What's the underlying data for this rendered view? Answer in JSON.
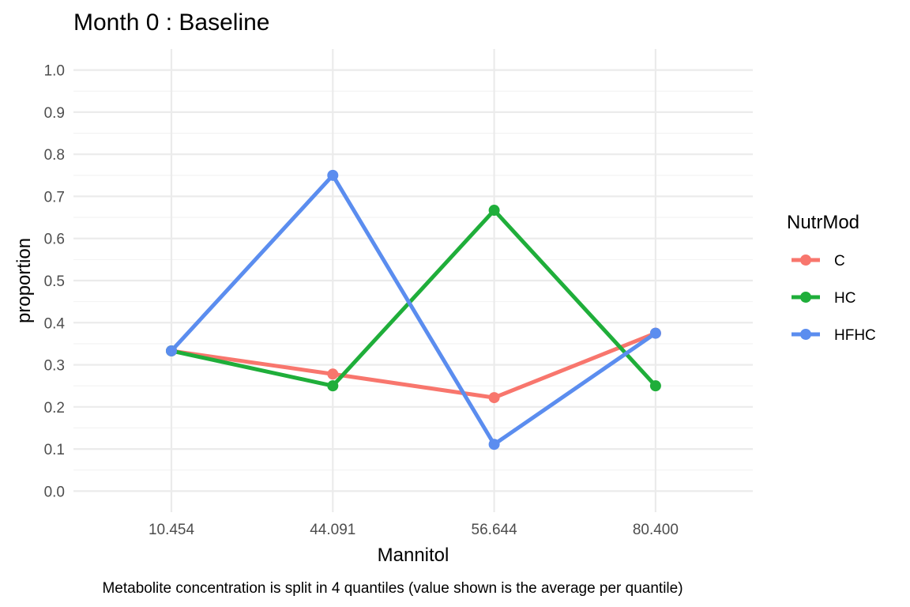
{
  "chart_data": {
    "type": "line",
    "title": "Month 0 : Baseline",
    "xlabel": "Mannitol",
    "ylabel": "proportion",
    "caption": "Metabolite concentration is split in 4 quantiles (value shown is the average per quantile)",
    "categories": [
      "10.454",
      "44.091",
      "56.644",
      "80.400"
    ],
    "ylim": [
      -0.05,
      1.05
    ],
    "yticks": [
      "0.0",
      "0.1",
      "0.2",
      "0.3",
      "0.4",
      "0.5",
      "0.6",
      "0.7",
      "0.8",
      "0.9",
      "1.0"
    ],
    "grid": true,
    "legend": {
      "title": "NutrMod",
      "position": "right"
    },
    "series": [
      {
        "name": "C",
        "color": "#F8766D",
        "values": [
          0.333,
          0.278,
          0.222,
          0.375
        ]
      },
      {
        "name": "HC",
        "color": "#1FAE3A",
        "values": [
          0.333,
          0.25,
          0.667,
          0.25
        ]
      },
      {
        "name": "HFHC",
        "color": "#5B8DEF",
        "values": [
          0.333,
          0.75,
          0.111,
          0.375
        ]
      }
    ]
  }
}
